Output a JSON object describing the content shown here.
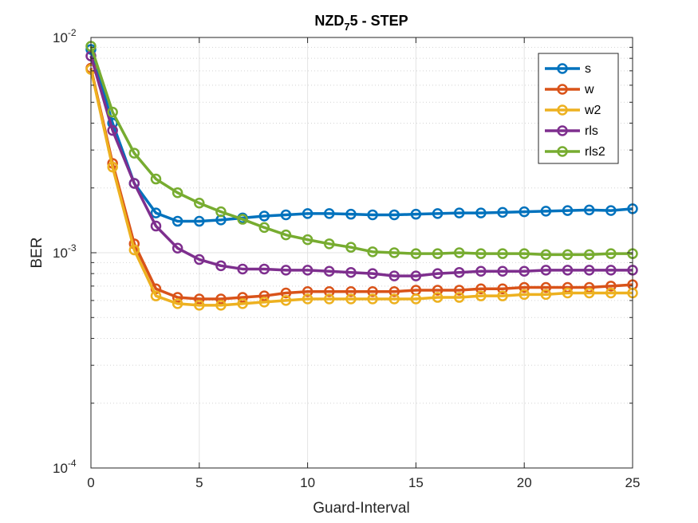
{
  "chart_data": {
    "type": "line",
    "title": {
      "main": "NZD",
      "sub": "7",
      "rest": "5 - STEP"
    },
    "xlabel": "Guard-Interval",
    "ylabel": "BER",
    "xlim": [
      0,
      25
    ],
    "ylim": [
      0.0001,
      0.01
    ],
    "yscale": "log",
    "grid": true,
    "legend_position": "top-right",
    "x_ticks": [
      0,
      5,
      10,
      15,
      20,
      25
    ],
    "x_tick_labels": [
      "0",
      "5",
      "10",
      "15",
      "20",
      "25"
    ],
    "y_ticks": [
      {
        "value": 0.01,
        "base": "10",
        "exp": "-2"
      },
      {
        "value": 0.001,
        "base": "10",
        "exp": "-3"
      },
      {
        "value": 0.0001,
        "base": "10",
        "exp": "-4"
      }
    ],
    "x": [
      0,
      1,
      2,
      3,
      4,
      5,
      6,
      7,
      8,
      9,
      10,
      11,
      12,
      13,
      14,
      15,
      16,
      17,
      18,
      19,
      20,
      21,
      22,
      23,
      24,
      25
    ],
    "series": [
      {
        "name": "s",
        "color": "#0072BD",
        "values": [
          0.0088,
          0.004,
          0.0021,
          0.00153,
          0.0014,
          0.0014,
          0.00142,
          0.00145,
          0.00148,
          0.0015,
          0.00152,
          0.00152,
          0.00151,
          0.0015,
          0.0015,
          0.00151,
          0.00152,
          0.00153,
          0.00153,
          0.00154,
          0.00155,
          0.00156,
          0.00157,
          0.00158,
          0.00157,
          0.0016
        ]
      },
      {
        "name": "w",
        "color": "#D95319",
        "values": [
          0.0072,
          0.0026,
          0.0011,
          0.00068,
          0.00062,
          0.00061,
          0.00061,
          0.00062,
          0.00063,
          0.00065,
          0.00066,
          0.00066,
          0.00066,
          0.00066,
          0.00066,
          0.00067,
          0.00067,
          0.00067,
          0.00068,
          0.00068,
          0.00069,
          0.00069,
          0.00069,
          0.00069,
          0.0007,
          0.00071
        ]
      },
      {
        "name": "w2",
        "color": "#EDB120",
        "values": [
          0.0071,
          0.0025,
          0.00103,
          0.00063,
          0.00058,
          0.00057,
          0.00057,
          0.00058,
          0.00059,
          0.0006,
          0.00061,
          0.00061,
          0.00061,
          0.00061,
          0.00061,
          0.00061,
          0.00062,
          0.00062,
          0.00063,
          0.00063,
          0.00064,
          0.00064,
          0.00065,
          0.00065,
          0.00065,
          0.00065
        ]
      },
      {
        "name": "rls",
        "color": "#7E2F8E",
        "values": [
          0.0082,
          0.0037,
          0.0021,
          0.00133,
          0.00105,
          0.00093,
          0.00087,
          0.00084,
          0.00084,
          0.00083,
          0.00083,
          0.00082,
          0.00081,
          0.0008,
          0.00078,
          0.00078,
          0.0008,
          0.00081,
          0.00082,
          0.00082,
          0.00082,
          0.00083,
          0.00083,
          0.00083,
          0.00083,
          0.00083
        ]
      },
      {
        "name": "rls2",
        "color": "#77AC30",
        "values": [
          0.0091,
          0.0045,
          0.0029,
          0.0022,
          0.0019,
          0.0017,
          0.00155,
          0.00143,
          0.00131,
          0.00121,
          0.00115,
          0.0011,
          0.00106,
          0.00101,
          0.001,
          0.00099,
          0.00099,
          0.001,
          0.00099,
          0.00099,
          0.00099,
          0.00098,
          0.00098,
          0.00098,
          0.00099,
          0.00099
        ]
      }
    ]
  }
}
